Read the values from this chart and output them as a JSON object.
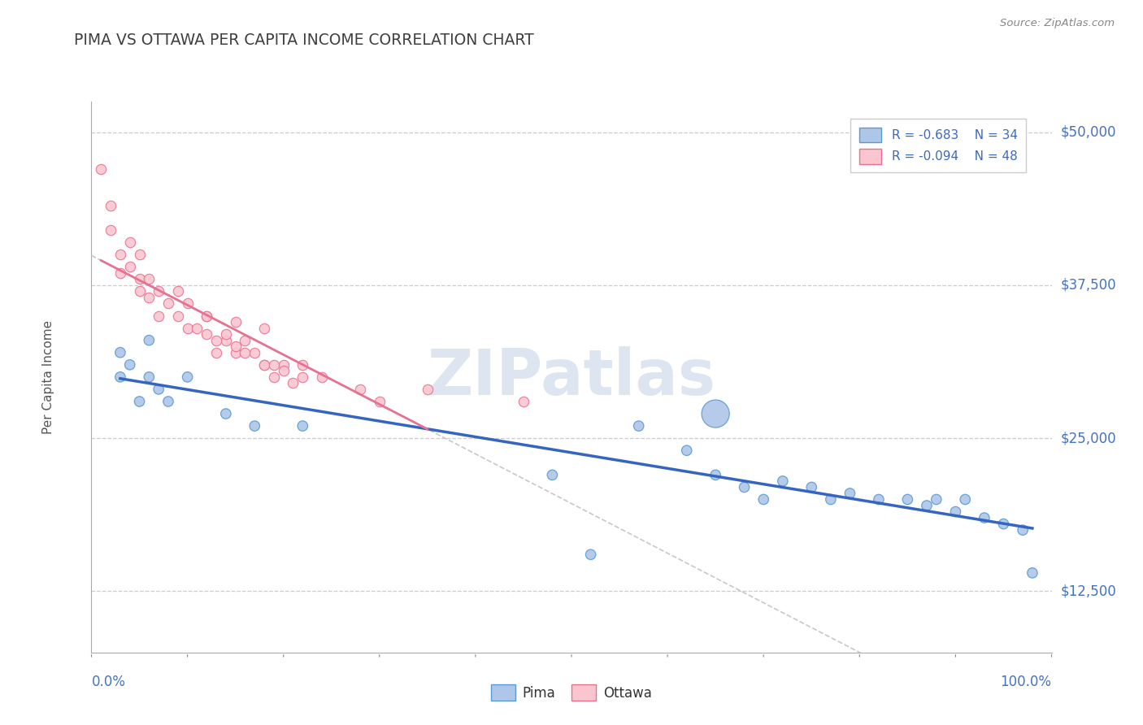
{
  "title": "PIMA VS OTTAWA PER CAPITA INCOME CORRELATION CHART",
  "source_text": "Source: ZipAtlas.com",
  "ylabel": "Per Capita Income",
  "xlim": [
    0.0,
    1.0
  ],
  "ylim": [
    7500,
    52500
  ],
  "yticks": [
    12500,
    25000,
    37500,
    50000
  ],
  "ytick_labels": [
    "$12,500",
    "$25,000",
    "$37,500",
    "$50,000"
  ],
  "xtick_labels": [
    "0.0%",
    "100.0%"
  ],
  "watermark": "ZIPatlas",
  "pima_R": -0.683,
  "pima_N": 34,
  "ottawa_R": -0.094,
  "ottawa_N": 48,
  "pima_color": "#aec6e8",
  "pima_edge_color": "#5b9bd5",
  "ottawa_color": "#f9c6d0",
  "ottawa_edge_color": "#e87090",
  "trend_pima_color": "#3465c0",
  "trend_ottawa_color": "#e87090",
  "trend_dashed_color": "#c8c8c8",
  "background_color": "#ffffff",
  "grid_color": "#cccccc",
  "title_color": "#404040",
  "label_color": "#4472c4",
  "pima_x": [
    0.03,
    0.03,
    0.04,
    0.05,
    0.06,
    0.06,
    0.07,
    0.08,
    0.1,
    0.14,
    0.17,
    0.22,
    0.48,
    0.57,
    0.62,
    0.65,
    0.68,
    0.7,
    0.72,
    0.75,
    0.77,
    0.79,
    0.82,
    0.85,
    0.87,
    0.88,
    0.9,
    0.91,
    0.93,
    0.95,
    0.97,
    0.98,
    0.52,
    0.65
  ],
  "pima_y": [
    32000,
    30000,
    31000,
    28000,
    33000,
    30000,
    29000,
    28000,
    30000,
    27000,
    26000,
    26000,
    22000,
    26000,
    24000,
    22000,
    21000,
    20000,
    21500,
    21000,
    20000,
    20500,
    20000,
    20000,
    19500,
    20000,
    19000,
    20000,
    18500,
    18000,
    17500,
    14000,
    15500,
    27000
  ],
  "pima_size": [
    80,
    80,
    80,
    80,
    80,
    80,
    80,
    80,
    80,
    80,
    80,
    80,
    80,
    80,
    80,
    80,
    80,
    80,
    80,
    80,
    80,
    80,
    80,
    80,
    80,
    80,
    80,
    80,
    80,
    80,
    80,
    80,
    80,
    600
  ],
  "ottawa_x": [
    0.01,
    0.02,
    0.02,
    0.03,
    0.03,
    0.04,
    0.04,
    0.05,
    0.05,
    0.05,
    0.06,
    0.06,
    0.07,
    0.07,
    0.08,
    0.09,
    0.09,
    0.1,
    0.1,
    0.11,
    0.12,
    0.12,
    0.13,
    0.14,
    0.15,
    0.15,
    0.16,
    0.17,
    0.18,
    0.19,
    0.2,
    0.22,
    0.14,
    0.18,
    0.28,
    0.3,
    0.18,
    0.22,
    0.24,
    0.45,
    0.12,
    0.15,
    0.35,
    0.19,
    0.2,
    0.21,
    0.16,
    0.13
  ],
  "ottawa_y": [
    47000,
    44000,
    42000,
    40000,
    38500,
    41000,
    39000,
    38000,
    37000,
    40000,
    38000,
    36500,
    37000,
    35000,
    36000,
    35000,
    37000,
    34000,
    36000,
    34000,
    33500,
    35000,
    32000,
    33000,
    34500,
    32000,
    33000,
    32000,
    31000,
    30000,
    31000,
    30000,
    33500,
    31000,
    29000,
    28000,
    34000,
    31000,
    30000,
    28000,
    35000,
    32500,
    29000,
    31000,
    30500,
    29500,
    32000,
    33000
  ],
  "ottawa_size": [
    80,
    80,
    80,
    80,
    80,
    80,
    80,
    80,
    80,
    80,
    80,
    80,
    80,
    80,
    80,
    80,
    80,
    80,
    80,
    80,
    80,
    80,
    80,
    80,
    80,
    80,
    80,
    80,
    80,
    80,
    80,
    80,
    80,
    80,
    80,
    80,
    80,
    80,
    80,
    80,
    80,
    80,
    80,
    80,
    80,
    80,
    80,
    80
  ]
}
